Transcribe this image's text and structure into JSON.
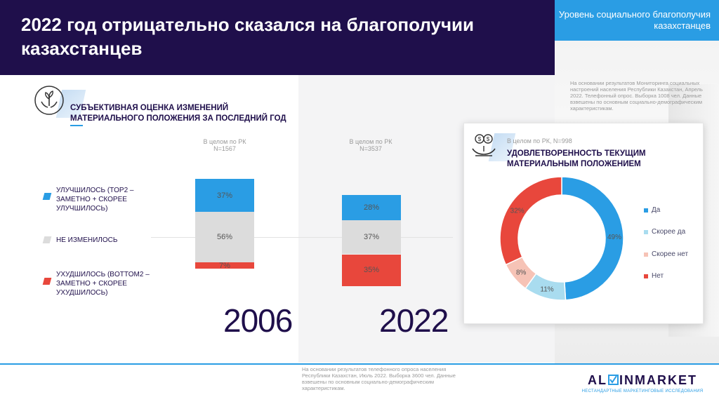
{
  "header": {
    "title": "2022 год отрицательно сказался на благополучии казахстанцев",
    "corner_label": "Уровень социального благополучия казахстанцев"
  },
  "top_note": "На основании результатов Мониторинга социальных настроений населения Республики Казахстан, Апрель 2022. Телефонный опрос. Выборка 1008 чел. Данные взвешены по основным социально-демографическим характеристикам.",
  "section1": {
    "icon": "hands-plant-icon",
    "title": "СУБЪЕКТИВНАЯ ОЦЕНКА ИЗМЕНЕНИЙ МАТЕРИАЛЬНОГО ПОЛОЖЕНИЯ ЗА ПОСЛЕДНИЙ ГОД",
    "legend": [
      {
        "label": "УЛУЧШИЛОСЬ (TOP2 – ЗАМЕТНО + СКОРЕЕ УЛУЧШИЛОСЬ)",
        "color": "#2a9de4"
      },
      {
        "label": "НЕ ИЗМЕНИЛОСЬ",
        "color": "#dcdcdc"
      },
      {
        "label": "УХУДШИЛОСЬ (BOTTOM2 – ЗАМЕТНО + СКОРЕЕ УХУДШИЛОСЬ)",
        "color": "#e8473c"
      }
    ]
  },
  "chart_data": [
    {
      "type": "bar",
      "stacked": true,
      "title": "СУБЪЕКТИВНАЯ ОЦЕНКА ИЗМЕНЕНИЙ МАТЕРИАЛЬНОГО ПОЛОЖЕНИЯ ЗА ПОСЛЕДНИЙ ГОД",
      "categories": [
        "2006",
        "2022"
      ],
      "base_labels": [
        {
          "line1": "В целом по РК",
          "line2": "N=1567"
        },
        {
          "line1": "В целом по РК",
          "line2": "N=3537"
        }
      ],
      "series": [
        {
          "name": "УЛУЧШИЛОСЬ",
          "values": [
            37,
            28
          ],
          "labels": [
            "37%",
            "28%"
          ],
          "color": "#2a9de4"
        },
        {
          "name": "НЕ ИЗМЕНИЛОСЬ",
          "values": [
            56,
            37
          ],
          "labels": [
            "56%",
            "37%"
          ],
          "color": "#dcdcdc"
        },
        {
          "name": "УХУДШИЛОСЬ",
          "values": [
            7,
            35
          ],
          "labels": [
            "7%",
            "35%"
          ],
          "color": "#e8473c"
        }
      ]
    },
    {
      "type": "pie",
      "donut": true,
      "title": "УДОВЛЕТВОРЕННОСТЬ ТЕКУЩИМ МАТЕРИАЛЬНЫМ ПОЛОЖЕНИЕМ",
      "base_label": "В целом по РК, N=998",
      "categories": [
        "Да",
        "Скорее да",
        "Скорее нет",
        "Нет"
      ],
      "values": [
        49,
        11,
        8,
        32
      ],
      "labels": [
        "49%",
        "11%",
        "8%",
        "32%"
      ],
      "colors": [
        "#2a9de4",
        "#a9dcef",
        "#f6c3b6",
        "#e8473c"
      ]
    }
  ],
  "card": {
    "icon": "hand-coins-icon",
    "base": "В целом по РК, N=998",
    "title": "УДОВЛЕТВОРЕННОСТЬ ТЕКУЩИМ МАТЕРИАЛЬНЫМ ПОЛОЖЕНИЕМ"
  },
  "bottom_note": "На основании результатов телефонного опроса населения Республики Казахстан, Июль 2022. Выборка 3600 чел. Данные взвешены по основным социально-демографическим характеристикам.",
  "logo": {
    "left": "AL",
    "right": "INMARKET",
    "tagline": "НЕСТАНДАРТНЫЕ МАРКЕТИНГОВЫЕ ИССЛЕДОВАНИЯ"
  }
}
